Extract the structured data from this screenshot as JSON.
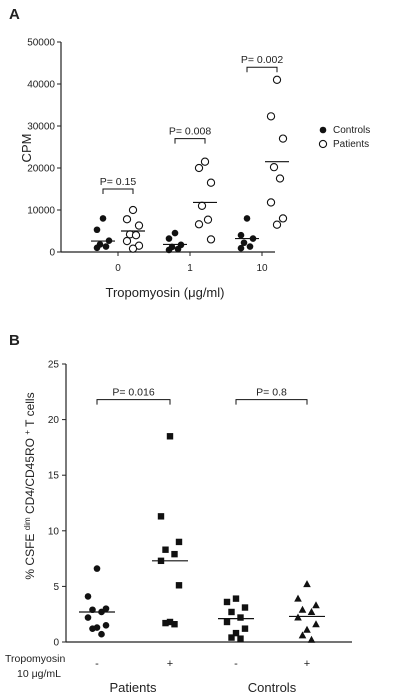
{
  "chart_data": [
    {
      "panel": "A",
      "type": "scatter",
      "ylabel": "CPM",
      "xlabel": "Tropomyosin (μg/ml)",
      "ylim": [
        0,
        50000
      ],
      "yticks": [
        "0",
        "10000",
        "20000",
        "30000",
        "40000",
        "50000"
      ],
      "categories": [
        "0",
        "1",
        "10"
      ],
      "legend": {
        "placement": "right",
        "entries": [
          {
            "label": "Controls",
            "marker": "filled-circle"
          },
          {
            "label": "Patients",
            "marker": "open-circle"
          }
        ]
      },
      "series": [
        {
          "name": "Controls",
          "marker": "filled-circle",
          "groups": [
            {
              "category": "0",
              "values": [
                8000,
                5300,
                2700,
                1800,
                1300,
                1000
              ],
              "median": 2600
            },
            {
              "category": "1",
              "values": [
                4500,
                3200,
                1700,
                1200,
                700,
                500
              ],
              "median": 1800
            },
            {
              "category": "10",
              "values": [
                8000,
                4000,
                3200,
                2200,
                1300,
                900
              ],
              "median": 3200
            }
          ]
        },
        {
          "name": "Patients",
          "marker": "open-circle",
          "groups": [
            {
              "category": "0",
              "values": [
                10000,
                7800,
                6300,
                4200,
                4000,
                2600,
                1500,
                800
              ],
              "median": 5000
            },
            {
              "category": "1",
              "values": [
                21500,
                20000,
                16500,
                11000,
                7700,
                6600,
                3000
              ],
              "median": 11800
            },
            {
              "category": "10",
              "values": [
                41000,
                32300,
                27000,
                20200,
                17500,
                11800,
                8000,
                6500
              ],
              "median": 21500
            }
          ]
        }
      ],
      "annotations": [
        {
          "category": "0",
          "text": "P= 0.15",
          "bracket_y": 15000
        },
        {
          "category": "1",
          "text": "P= 0.008",
          "bracket_y": 27000
        },
        {
          "category": "10",
          "text": "P= 0.002",
          "bracket_y": 44000
        }
      ]
    },
    {
      "panel": "B",
      "type": "scatter",
      "ylabel": "% CSFE dim CD4/CD45RO + T cells",
      "ylabel_parts": {
        "pre": "% CSFE ",
        "sup1": "dim",
        "mid": " CD4/CD45RO ",
        "sup2": "+",
        "post": " T cells"
      },
      "ylim": [
        0,
        25
      ],
      "yticks": [
        "0",
        "5",
        "10",
        "15",
        "20",
        "25"
      ],
      "row_label": [
        "Tropomyosin",
        "10 μg/mL"
      ],
      "groups": [
        {
          "label": "Patients",
          "conditions": [
            {
              "sign": "-",
              "marker": "filled-circle",
              "values": [
                6.6,
                4.1,
                3.0,
                2.9,
                2.7,
                2.2,
                1.5,
                1.3,
                1.2,
                0.7
              ],
              "median": 2.7
            },
            {
              "sign": "+",
              "marker": "filled-square",
              "values": [
                18.5,
                11.3,
                9.0,
                8.3,
                7.9,
                7.3,
                5.1,
                1.8,
                1.7,
                1.6
              ],
              "median": 7.3
            }
          ],
          "annotation": {
            "text": "P= 0.016",
            "bracket_y": 21.8
          }
        },
        {
          "label": "Controls",
          "conditions": [
            {
              "sign": "-",
              "marker": "filled-square",
              "values": [
                3.9,
                3.6,
                3.1,
                2.7,
                2.2,
                1.8,
                1.2,
                0.8,
                0.4,
                0.3
              ],
              "median": 2.1
            },
            {
              "sign": "+",
              "marker": "filled-triangle",
              "values": [
                5.2,
                3.9,
                3.3,
                2.9,
                2.7,
                2.2,
                1.6,
                1.1,
                0.6,
                0.2
              ],
              "median": 2.3
            }
          ],
          "annotation": {
            "text": "P= 0.8",
            "bracket_y": 21.8
          }
        }
      ]
    }
  ]
}
